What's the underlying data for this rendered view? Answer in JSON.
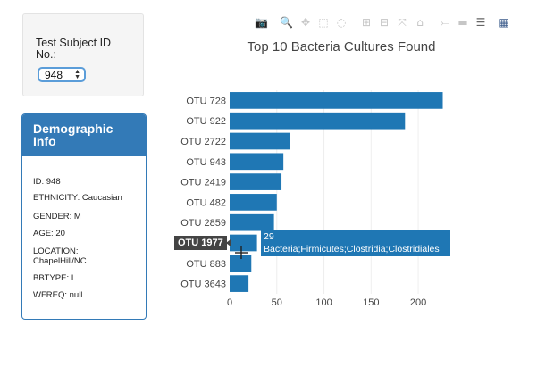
{
  "selector": {
    "label": "Test Subject ID No.:",
    "selected": "948"
  },
  "demographics": {
    "heading": "Demographic Info",
    "items": [
      "ID: 948",
      "ETHNICITY: Caucasian",
      "GENDER: M",
      "AGE: 20",
      "LOCATION: ChapelHill/NC",
      "BBTYPE: I",
      "WFREQ: null"
    ]
  },
  "toolbar": {
    "icons": [
      "camera-icon",
      "zoom-icon",
      "pan-icon",
      "box-select-icon",
      "lasso-select-icon",
      "zoom-in-icon",
      "zoom-out-icon",
      "autoscale-icon",
      "reset-axes-icon",
      "spike-lines-icon",
      "hover-closest-icon",
      "hover-compare-icon",
      "plotly-logo-icon"
    ]
  },
  "tooltip": {
    "label": "OTU 1977",
    "value": "29",
    "text": "Bacteria;Firmicutes;Clostridia;Clostridiales"
  },
  "chart_data": {
    "type": "bar",
    "orientation": "horizontal",
    "title": "Top 10 Bacteria Cultures Found",
    "categories": [
      "OTU 728",
      "OTU 922",
      "OTU 2722",
      "OTU 943",
      "OTU 2419",
      "OTU 482",
      "OTU 2859",
      "OTU 1977",
      "OTU 883",
      "OTU 3643"
    ],
    "values": [
      226,
      186,
      64,
      57,
      55,
      50,
      47,
      29,
      23,
      20
    ],
    "xlim": [
      0,
      235
    ],
    "xticks": [
      0,
      50,
      100,
      150,
      200
    ],
    "bar_color": "#1f77b4",
    "grid": true
  }
}
